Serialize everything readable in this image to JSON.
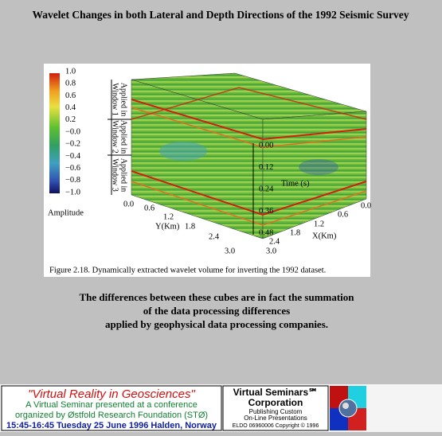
{
  "header": {
    "title": "Wavelet Changes in both Lateral and Depth Directions of the 1992 Seismic Survey"
  },
  "figure": {
    "colorbar": {
      "ticks": [
        "1.0",
        "0.8",
        "0.6",
        "0.4",
        "0.2",
        "−0.0",
        "−0.2",
        "−0.4",
        "−0.6",
        "−0.8",
        "−1.0"
      ],
      "label": "Amplitude"
    },
    "windows": [
      [
        "Applied in",
        "Window 1"
      ],
      [
        "Applied in",
        "Window 2"
      ],
      [
        "Applied in",
        "Window 3"
      ]
    ],
    "time_axis": {
      "ticks": [
        "0.00",
        "0.12",
        "0.24",
        "0.36",
        "0.48"
      ],
      "label": "Time (s)"
    },
    "y_axis": {
      "ticks": [
        "0.0",
        "0.6",
        "1.2",
        "1.8",
        "2.4",
        "3.0"
      ],
      "label": "Y(Km)"
    },
    "x_axis": {
      "ticks": [
        "0.0",
        "0.6",
        "1.2",
        "1.8",
        "2.4",
        "3.0"
      ],
      "label": "X(Km)"
    },
    "caption": "Figure  2.18.  Dynamically extracted wavelet volume for inverting the 1992 dataset."
  },
  "paragraph": [
    "The differences between these cubes are in fact the summation",
    "of the data processing differences",
    "applied by geophysical data processing companies."
  ],
  "banner": {
    "left": [
      "\"Virtual Reality in Geosciences\"",
      "A Virtual Seminar presented at a conference",
      "organized by Østfold Research Foundation (STØ)",
      "15:45-16:45 Tuesday 25 June 1996 Halden, Norway"
    ],
    "middle": [
      "Virtual Seminars℠",
      "Corporation",
      "Publishing Custom",
      "On-Line Presentations",
      "ELDO 06960006 Copyright © 1996"
    ]
  }
}
